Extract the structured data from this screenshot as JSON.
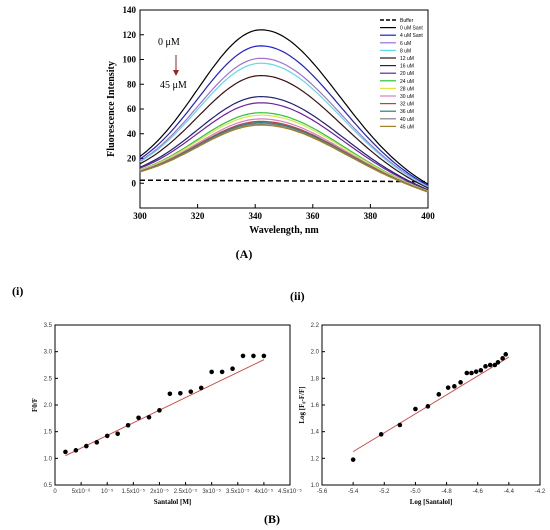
{
  "labels": {
    "A": "(A)",
    "B": "(B)",
    "i": "(i)",
    "ii": "(ii)"
  },
  "colors": {
    "buffer": "#000000",
    "c0": "#000000",
    "c4": "#1f1fd0",
    "c6": "#a070d8",
    "c8": "#5fd8e8",
    "c12": "#3a1010",
    "c16": "#202070",
    "c20": "#7020a0",
    "c24": "#30c040",
    "c28": "#d8e840",
    "c30": "#d080c0",
    "c32": "#c04040",
    "c36": "#208080",
    "c40": "#808080",
    "c45": "#a08020",
    "fit": "#d04040",
    "point": "#000000"
  },
  "chart_data": [
    {
      "type": "line",
      "xlabel": "Wavelength, nm",
      "ylabel": "Fluorescence Intensity",
      "xlim": [
        300,
        400
      ],
      "ylim": [
        -20,
        140
      ],
      "xticks": [
        300,
        320,
        340,
        360,
        380,
        400
      ],
      "yticks": [
        0,
        20,
        40,
        60,
        80,
        100,
        120,
        140
      ],
      "annotations": {
        "top": "0 μM",
        "bottom": "45 μM"
      },
      "legend_position": "top-right",
      "series": [
        {
          "name": "Buffer",
          "style": "dashed",
          "color_key": "buffer",
          "peak": 3
        },
        {
          "name": "0 uM Sant",
          "color_key": "c0",
          "peak": 124
        },
        {
          "name": "4 uM Sant",
          "color_key": "c4",
          "peak": 111
        },
        {
          "name": "6 uM",
          "color_key": "c6",
          "peak": 101
        },
        {
          "name": "8 uM",
          "color_key": "c8",
          "peak": 97
        },
        {
          "name": "12 uM",
          "color_key": "c12",
          "peak": 87
        },
        {
          "name": "16 uM",
          "color_key": "c16",
          "peak": 70
        },
        {
          "name": "20 uM",
          "color_key": "c20",
          "peak": 65
        },
        {
          "name": "24 uM",
          "color_key": "c24",
          "peak": 57
        },
        {
          "name": "28 uM",
          "color_key": "c28",
          "peak": 55
        },
        {
          "name": "30 uM",
          "color_key": "c30",
          "peak": 52
        },
        {
          "name": "32 uM",
          "color_key": "c32",
          "peak": 50
        },
        {
          "name": "36 uM",
          "color_key": "c36",
          "peak": 49
        },
        {
          "name": "40 uM",
          "color_key": "c40",
          "peak": 48
        },
        {
          "name": "45 uM",
          "color_key": "c45",
          "peak": 47
        }
      ],
      "peak_x": 342
    },
    {
      "type": "scatter",
      "xlabel": "Santalol [M]",
      "ylabel": "F0/F",
      "xlim": [
        0,
        4.5e-05
      ],
      "ylim": [
        0.5,
        3.5
      ],
      "xticks": [
        0,
        5e-06,
        1e-05,
        1.5e-05,
        2e-05,
        2.5e-05,
        3e-05,
        3.5e-05,
        4e-05,
        4.5e-05
      ],
      "xtick_labels": [
        "0",
        "5x10⁻⁶",
        "10⁻⁵",
        "1.5x10⁻⁵",
        "2x10⁻⁵",
        "2.5x10⁻⁵",
        "3x10⁻⁵",
        "3.5x10⁻⁵",
        "4x10⁻⁵",
        "4.5x10⁻⁵"
      ],
      "yticks": [
        0.5,
        1.0,
        1.5,
        2.0,
        2.5,
        3.0,
        3.5
      ],
      "ytick_labels": [
        "0.5",
        "1.0",
        "1.5",
        "2.0",
        "2.5",
        "3.0",
        "3.5"
      ],
      "x": [
        2e-06,
        4e-06,
        6e-06,
        8e-06,
        1e-05,
        1.2e-05,
        1.4e-05,
        1.6e-05,
        1.8e-05,
        2e-05,
        2.2e-05,
        2.4e-05,
        2.6e-05,
        2.8e-05,
        3e-05,
        3.2e-05,
        3.4e-05,
        3.6e-05,
        3.8e-05,
        4e-05
      ],
      "y": [
        1.12,
        1.15,
        1.23,
        1.3,
        1.42,
        1.46,
        1.62,
        1.76,
        1.77,
        1.9,
        2.21,
        2.22,
        2.25,
        2.32,
        2.62,
        2.62,
        2.68,
        2.92,
        2.92,
        2.92
      ],
      "fit": {
        "x": [
          2e-06,
          4e-05
        ],
        "y": [
          1.05,
          2.85
        ]
      }
    },
    {
      "type": "scatter",
      "xlabel": "Log [Santalol]",
      "ylabel": "Log [F₀-F/F]",
      "xlim": [
        -5.6,
        -4.2
      ],
      "ylim": [
        1.0,
        2.2
      ],
      "xticks": [
        -5.6,
        -5.4,
        -5.2,
        -5.0,
        -4.8,
        -4.6,
        -4.4,
        -4.2
      ],
      "xtick_labels": [
        "-5.6",
        "-5.4",
        "-5.2",
        "-5.0",
        "-4.8",
        "-4.6",
        "-4.4",
        "-4.2"
      ],
      "yticks": [
        1.0,
        1.2,
        1.4,
        1.6,
        1.8,
        2.0,
        2.2
      ],
      "ytick_labels": [
        "1.0",
        "1.2",
        "1.4",
        "1.6",
        "1.8",
        "2.0",
        "2.2"
      ],
      "x": [
        -5.4,
        -5.22,
        -5.1,
        -5.0,
        -4.92,
        -4.85,
        -4.79,
        -4.75,
        -4.71,
        -4.67,
        -4.64,
        -4.61,
        -4.58,
        -4.55,
        -4.52,
        -4.49,
        -4.47,
        -4.44,
        -4.42
      ],
      "y": [
        1.19,
        1.38,
        1.45,
        1.57,
        1.59,
        1.68,
        1.73,
        1.74,
        1.77,
        1.84,
        1.84,
        1.85,
        1.86,
        1.89,
        1.9,
        1.9,
        1.92,
        1.95,
        1.98
      ],
      "fit": {
        "x": [
          -5.4,
          -4.4
        ],
        "y": [
          1.25,
          1.96
        ]
      }
    }
  ]
}
